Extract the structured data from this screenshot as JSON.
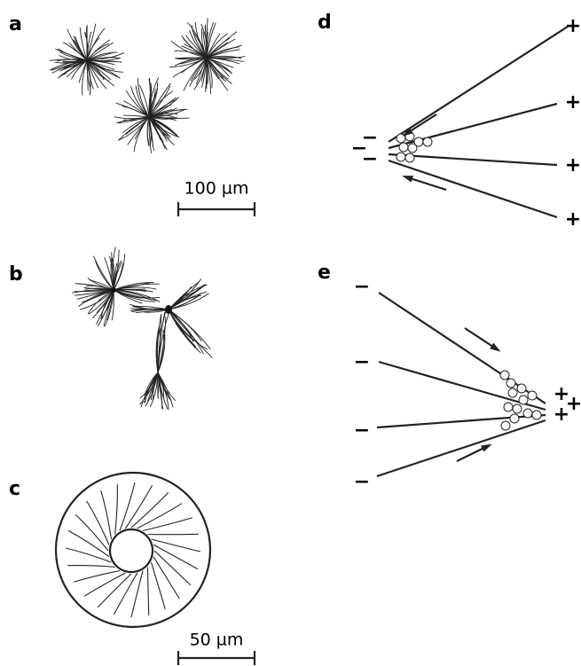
{
  "panels": [
    {
      "label": "a",
      "scale_bar": "100 µm"
    },
    {
      "label": "b"
    },
    {
      "label": "c",
      "scale_bar": "50 µm"
    },
    {
      "label": "d",
      "plus_signs": [
        "+",
        "+",
        "+",
        "+"
      ],
      "minus_signs": [
        "−",
        "−",
        "−"
      ]
    },
    {
      "label": "e",
      "minus_signs": [
        "−",
        "−",
        "−",
        "−"
      ],
      "plus_signs": [
        "+",
        "+",
        "+"
      ]
    }
  ]
}
